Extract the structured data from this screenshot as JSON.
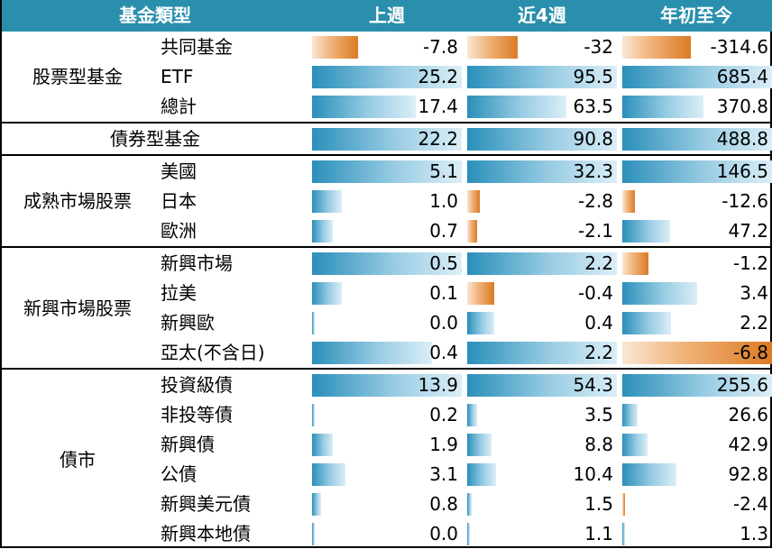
{
  "colors": {
    "header_bg": "#2a8fad",
    "positive_bar": "#2a8fba",
    "negative_bar": "#db7a23"
  },
  "header": {
    "category": "基金類型",
    "col1": "上週",
    "col2": "近4週",
    "col3": "年初至今"
  },
  "sections": [
    {
      "category": "股票型基金",
      "rows": [
        {
          "label": "共同基金",
          "values": [
            "-7.8",
            "-32",
            "-314.6"
          ]
        },
        {
          "label": "ETF",
          "values": [
            "25.2",
            "95.5",
            "685.4"
          ]
        },
        {
          "label": "總計",
          "values": [
            "17.4",
            "63.5",
            "370.8"
          ]
        }
      ]
    },
    {
      "category": "債券型基金",
      "single": true,
      "rows": [
        {
          "label": "",
          "values": [
            "22.2",
            "90.8",
            "488.8"
          ]
        }
      ]
    },
    {
      "category": "成熟市場股票",
      "rows": [
        {
          "label": "美國",
          "values": [
            "5.1",
            "32.3",
            "146.5"
          ]
        },
        {
          "label": "日本",
          "values": [
            "1.0",
            "-2.8",
            "-12.6"
          ]
        },
        {
          "label": "歐洲",
          "values": [
            "0.7",
            "-2.1",
            "47.2"
          ]
        }
      ]
    },
    {
      "category": "新興市場股票",
      "rows": [
        {
          "label": "新興市場",
          "values": [
            "0.5",
            "2.2",
            "-1.2"
          ]
        },
        {
          "label": "拉美",
          "values": [
            "0.1",
            "-0.4",
            "3.4"
          ]
        },
        {
          "label": "新興歐",
          "values": [
            "0.0",
            "0.4",
            "2.2"
          ]
        },
        {
          "label": "亞太(不含日)",
          "values": [
            "0.4",
            "2.2",
            "-6.8"
          ]
        }
      ]
    },
    {
      "category": "債市",
      "rows": [
        {
          "label": "投資級債",
          "values": [
            "13.9",
            "54.3",
            "255.6"
          ]
        },
        {
          "label": "非投等債",
          "values": [
            "0.2",
            "3.5",
            "26.6"
          ]
        },
        {
          "label": "新興債",
          "values": [
            "1.9",
            "8.8",
            "42.9"
          ]
        },
        {
          "label": "公債",
          "values": [
            "3.1",
            "10.4",
            "92.8"
          ]
        },
        {
          "label": "新興美元債",
          "values": [
            "0.8",
            "1.5",
            "-2.4"
          ]
        },
        {
          "label": "新興本地債",
          "values": [
            "0.0",
            "1.1",
            "1.3"
          ]
        }
      ]
    }
  ]
}
